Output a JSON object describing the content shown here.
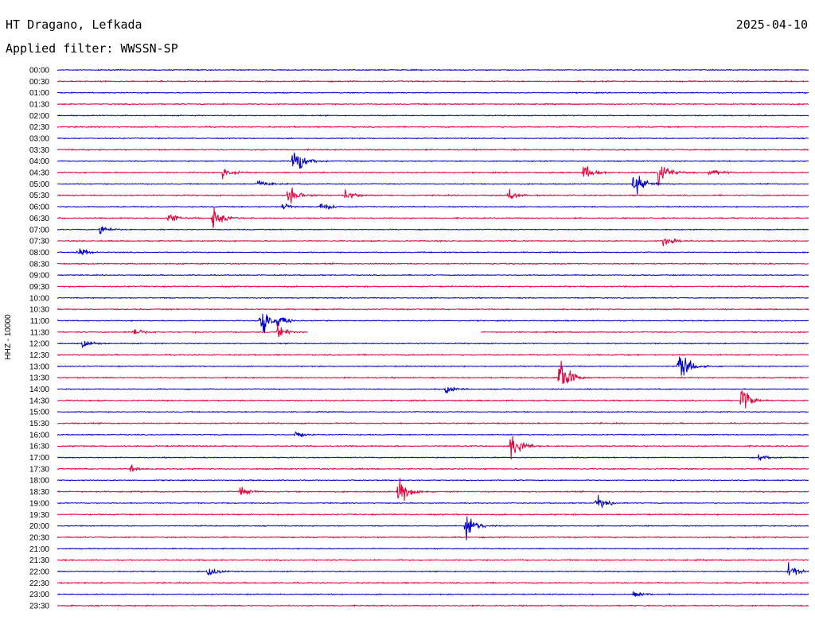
{
  "header": {
    "station": "HT Dragano, Lefkada",
    "date": "2025-04-10",
    "filter": "Applied filter: WWSSN-SP"
  },
  "chart_data": {
    "type": "line",
    "title": "HT Dragano, Lefkada",
    "subtitle": "Applied filter: WWSSN-SP",
    "ylabel": "HHZ - 10000",
    "xlabel": "",
    "traces": [
      "00:00",
      "00:30",
      "01:00",
      "01:30",
      "02:00",
      "02:30",
      "03:00",
      "03:30",
      "04:00",
      "04:30",
      "05:00",
      "05:30",
      "06:00",
      "06:30",
      "07:00",
      "07:30",
      "08:00",
      "08:30",
      "09:00",
      "09:30",
      "10:00",
      "10:30",
      "11:00",
      "11:30",
      "12:00",
      "12:30",
      "13:00",
      "13:30",
      "14:00",
      "14:30",
      "15:00",
      "15:30",
      "16:00",
      "16:30",
      "17:00",
      "17:30",
      "18:00",
      "18:30",
      "19:00",
      "19:30",
      "20:00",
      "20:30",
      "21:00",
      "21:30",
      "22:00",
      "22:30",
      "23:00",
      "23:30"
    ],
    "trace_colors": [
      "#0000cc",
      "#e8003c"
    ],
    "x_range": [
      0,
      30
    ],
    "x_unit": "minutes",
    "gap": {
      "trace": "11:30",
      "start": 10.0,
      "end": 16.9
    },
    "events": [
      {
        "trace": "04:00",
        "t": 9.4,
        "amp": 1.2
      },
      {
        "trace": "04:30",
        "t": 6.6,
        "amp": 0.4
      },
      {
        "trace": "04:30",
        "t": 21.0,
        "amp": 0.6
      },
      {
        "trace": "04:30",
        "t": 24.0,
        "amp": 1.0
      },
      {
        "trace": "04:30",
        "t": 26.0,
        "amp": 0.4
      },
      {
        "trace": "05:00",
        "t": 8.0,
        "amp": 0.4
      },
      {
        "trace": "05:00",
        "t": 23.0,
        "amp": 1.0
      },
      {
        "trace": "05:30",
        "t": 9.2,
        "amp": 0.9
      },
      {
        "trace": "05:30",
        "t": 11.5,
        "amp": 0.4
      },
      {
        "trace": "05:30",
        "t": 18.0,
        "amp": 0.4
      },
      {
        "trace": "06:00",
        "t": 9.0,
        "amp": 0.3
      },
      {
        "trace": "06:00",
        "t": 10.5,
        "amp": 0.4
      },
      {
        "trace": "06:30",
        "t": 4.4,
        "amp": 0.5
      },
      {
        "trace": "06:30",
        "t": 6.2,
        "amp": 0.8
      },
      {
        "trace": "07:00",
        "t": 1.7,
        "amp": 0.4
      },
      {
        "trace": "07:30",
        "t": 24.2,
        "amp": 0.4
      },
      {
        "trace": "08:00",
        "t": 0.8,
        "amp": 0.4
      },
      {
        "trace": "11:00",
        "t": 8.1,
        "amp": 1.2
      },
      {
        "trace": "11:00",
        "t": 8.8,
        "amp": 0.5
      },
      {
        "trace": "11:30",
        "t": 3.0,
        "amp": 0.4
      },
      {
        "trace": "11:30",
        "t": 8.8,
        "amp": 0.5
      },
      {
        "trace": "12:00",
        "t": 1.0,
        "amp": 0.3
      },
      {
        "trace": "13:00",
        "t": 24.8,
        "amp": 1.2
      },
      {
        "trace": "13:30",
        "t": 20.0,
        "amp": 1.6
      },
      {
        "trace": "14:00",
        "t": 15.5,
        "amp": 0.3
      },
      {
        "trace": "14:30",
        "t": 27.3,
        "amp": 0.9
      },
      {
        "trace": "16:00",
        "t": 9.5,
        "amp": 0.3
      },
      {
        "trace": "16:30",
        "t": 18.1,
        "amp": 1.0
      },
      {
        "trace": "17:00",
        "t": 28.0,
        "amp": 0.3
      },
      {
        "trace": "17:30",
        "t": 2.9,
        "amp": 0.3
      },
      {
        "trace": "18:30",
        "t": 13.6,
        "amp": 1.1
      },
      {
        "trace": "18:30",
        "t": 7.3,
        "amp": 0.4
      },
      {
        "trace": "19:00",
        "t": 21.5,
        "amp": 0.6
      },
      {
        "trace": "20:00",
        "t": 16.3,
        "amp": 1.0
      },
      {
        "trace": "22:00",
        "t": 6.0,
        "amp": 0.4
      },
      {
        "trace": "22:00",
        "t": 29.2,
        "amp": 0.6
      },
      {
        "trace": "23:00",
        "t": 23.0,
        "amp": 0.3
      }
    ]
  }
}
